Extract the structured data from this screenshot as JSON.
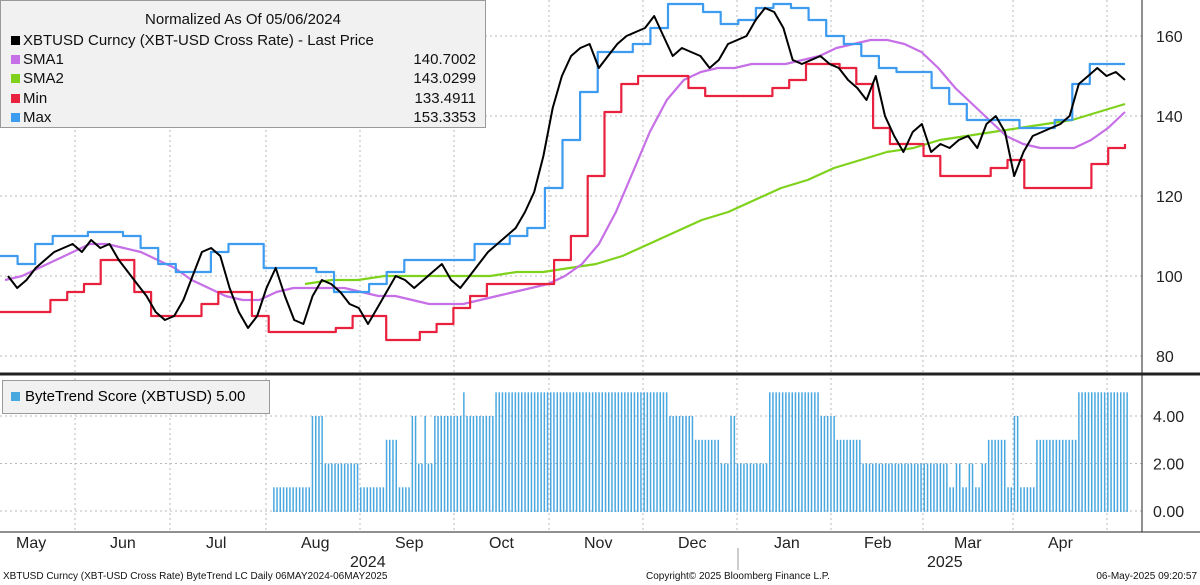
{
  "legend": {
    "title": "Normalized As Of 05/06/2024",
    "series": [
      {
        "label": "XBTUSD Curncy (XBT-USD Cross Rate) - Last Price",
        "value": "",
        "color": "#000000"
      },
      {
        "label": "SMA1",
        "value": "140.7002",
        "color": "#c66fe6"
      },
      {
        "label": "SMA2",
        "value": "143.0299",
        "color": "#7fd21c"
      },
      {
        "label": "Min",
        "value": "133.4911",
        "color": "#e8213f"
      },
      {
        "label": "Max",
        "value": "153.3353",
        "color": "#3d9bf0"
      }
    ]
  },
  "lower_legend": {
    "label": "ByteTrend Score (XBTUSD) 5.00",
    "color": "#4aa8e0"
  },
  "footer": {
    "left": "XBTUSD Curncy (XBT-USD Cross Rate) ByteTrend LC  Daily 06MAY2024-06MAY2025",
    "center": "Copyright© 2025 Bloomberg Finance L.P.",
    "right": "06-May-2025 09:20:57"
  },
  "chart_data": [
    {
      "type": "line",
      "panel": "upper",
      "x_labels": [
        "May",
        "Jun",
        "Jul",
        "Aug",
        "Sep",
        "Oct",
        "Nov",
        "Dec",
        "Jan",
        "Feb",
        "Mar",
        "Apr"
      ],
      "year_labels": [
        "2024",
        "2025"
      ],
      "y_ticks": [
        80,
        100,
        120,
        140,
        160
      ],
      "ylim": [
        76,
        169
      ],
      "grid": true,
      "series": [
        {
          "name": "XBTUSD Curncy (XBT-USD Cross Rate) - Last Price",
          "color": "#000000",
          "values": [
            100,
            97,
            99,
            102,
            104,
            106,
            107,
            108,
            106,
            109,
            107,
            108,
            104,
            101,
            98,
            95,
            91,
            89,
            90,
            94,
            100,
            106,
            107,
            105,
            97,
            91,
            87,
            90,
            97,
            102,
            95,
            89,
            88,
            95,
            99,
            98,
            96,
            93,
            92,
            88,
            92,
            96,
            100,
            99,
            97,
            99,
            101,
            103,
            99,
            97,
            100,
            103,
            106,
            108,
            110,
            112,
            116,
            121,
            130,
            142,
            150,
            155,
            157,
            158,
            152,
            155,
            158,
            160,
            161,
            162,
            165,
            160,
            155,
            157,
            156,
            155,
            152,
            154,
            158,
            159,
            160,
            164,
            167,
            166,
            162,
            154,
            153,
            154,
            155,
            153,
            152,
            149,
            147,
            144,
            150,
            140,
            135,
            131,
            136,
            138,
            131,
            133,
            132,
            134,
            135,
            132,
            138,
            140,
            136,
            125,
            131,
            135,
            136,
            137,
            138,
            140,
            148,
            150,
            152,
            150,
            151,
            149
          ]
        },
        {
          "name": "SMA1",
          "color": "#c66fe6",
          "values": [
            99,
            100,
            102,
            104,
            106,
            108,
            108,
            107,
            106,
            104,
            102,
            99,
            97,
            95,
            94,
            94,
            96,
            97,
            97,
            97,
            97,
            96,
            95,
            95,
            94,
            93,
            93,
            93,
            94,
            95,
            96,
            97,
            98,
            100,
            103,
            108,
            116,
            126,
            136,
            144,
            149,
            151,
            152,
            152,
            153,
            153,
            153,
            154,
            155,
            157,
            158,
            159,
            159,
            158,
            156,
            152,
            147,
            143,
            139,
            135,
            133,
            132,
            132,
            132,
            134,
            137,
            141
          ]
        },
        {
          "name": "SMA2",
          "color": "#7fd21c",
          "values": [
            98,
            99,
            99,
            100,
            100,
            100,
            100,
            100,
            101,
            101,
            102,
            103,
            105,
            108,
            111,
            114,
            116,
            119,
            122,
            124,
            127,
            129,
            131,
            132,
            134,
            135,
            136,
            137,
            138,
            139,
            141,
            143
          ]
        },
        {
          "name": "Min",
          "color": "#e8213f",
          "values": [
            91,
            91,
            91,
            94,
            96,
            98,
            104,
            104,
            96,
            90,
            90,
            90,
            93,
            96,
            96,
            90,
            86,
            86,
            86,
            86,
            87,
            90,
            90,
            84,
            84,
            86,
            88,
            92,
            95,
            98,
            98,
            98,
            98,
            104,
            110,
            125,
            141,
            148,
            150,
            150,
            150,
            147,
            145,
            145,
            145,
            145,
            147,
            149,
            153,
            153,
            152,
            148,
            137,
            133,
            133,
            130,
            125,
            125,
            125,
            127,
            129,
            122,
            122,
            122,
            122,
            128,
            132,
            133
          ]
        },
        {
          "name": "Max",
          "color": "#3d9bf0",
          "values": [
            105,
            103,
            108,
            110,
            110,
            111,
            111,
            110,
            107,
            103,
            101,
            101,
            106,
            108,
            108,
            102,
            102,
            102,
            101,
            96,
            96,
            98,
            101,
            104,
            104,
            104,
            104,
            108,
            108,
            110,
            112,
            122,
            134,
            146,
            156,
            156,
            158,
            162,
            168,
            168,
            166,
            163,
            164,
            167,
            168,
            167,
            164,
            160,
            158,
            155,
            152,
            151,
            151,
            147,
            143,
            139,
            139,
            139,
            137,
            137,
            139,
            148,
            153,
            153,
            153
          ]
        }
      ]
    },
    {
      "type": "bar",
      "panel": "lower",
      "name": "ByteTrend Score (XBTUSD) 5.00",
      "color": "#4aa8e0",
      "y_ticks": [
        "0.00",
        "2.00",
        "4.00"
      ],
      "ylim": [
        -0.8,
        5.6
      ],
      "values_per_day": [
        0,
        0,
        0,
        0,
        0,
        0,
        0,
        0,
        0,
        0,
        0,
        0,
        0,
        0,
        0,
        0,
        0,
        0,
        0,
        0,
        0,
        0,
        0,
        0,
        0,
        0,
        0,
        0,
        0,
        0,
        0,
        0,
        0,
        0,
        0,
        0,
        0,
        0,
        0,
        0,
        0,
        0,
        0,
        0,
        0,
        0,
        0,
        0,
        0,
        0,
        0,
        0,
        0,
        0,
        0,
        0,
        0,
        0,
        0,
        0,
        0,
        0,
        0,
        0,
        0,
        0,
        0,
        0,
        0,
        0,
        0,
        0,
        0,
        0,
        0,
        0,
        0,
        0,
        0,
        0,
        0,
        0,
        0,
        0,
        0,
        1,
        1,
        1,
        1,
        1,
        1,
        1,
        1,
        1,
        1,
        1,
        1,
        4,
        4,
        4,
        4,
        2,
        2,
        2,
        2,
        2,
        2,
        2,
        2,
        2,
        2,
        2,
        1,
        1,
        1,
        1,
        1,
        1,
        1,
        1,
        3,
        3,
        3,
        3,
        1,
        1,
        1,
        1,
        4,
        4,
        2,
        2,
        4,
        2,
        2,
        4,
        4,
        4,
        4,
        4,
        4,
        4,
        4,
        4,
        5,
        4,
        4,
        4,
        4,
        4,
        4,
        4,
        4,
        4,
        5,
        5,
        5,
        5,
        5,
        5,
        5,
        5,
        5,
        5,
        5,
        5,
        5,
        5,
        5,
        5,
        5,
        5,
        5,
        5,
        5,
        5,
        5,
        5,
        5,
        5,
        5,
        5,
        5,
        5,
        5,
        5,
        5,
        5,
        5,
        5,
        5,
        5,
        5,
        5,
        5,
        5,
        5,
        5,
        5,
        5,
        5,
        5,
        5,
        5,
        5,
        5,
        5,
        5,
        4,
        4,
        4,
        4,
        4,
        4,
        4,
        4,
        3,
        3,
        3,
        3,
        3,
        3,
        3,
        3,
        2,
        2,
        2,
        4,
        4,
        2,
        2,
        2,
        2,
        2,
        2,
        2,
        2,
        2,
        2,
        5,
        5,
        5,
        5,
        5,
        5,
        5,
        5,
        5,
        5,
        5,
        5,
        5,
        5,
        5,
        5,
        4,
        4,
        4,
        4,
        4,
        3,
        3,
        3,
        3,
        3,
        3,
        3,
        3,
        2,
        2,
        2,
        2,
        2,
        2,
        2,
        2,
        2,
        2,
        2,
        2,
        2,
        2,
        2,
        2,
        2,
        2,
        2,
        2,
        2,
        2,
        2,
        2,
        2,
        2,
        2,
        1,
        1,
        2,
        2,
        1,
        1,
        2,
        2,
        1,
        1,
        2,
        2,
        3,
        3,
        3,
        3,
        3,
        3,
        1,
        1,
        4,
        4,
        1,
        1,
        1,
        1,
        1,
        3,
        3,
        3,
        3,
        3,
        3,
        3,
        3,
        3,
        3,
        3,
        3,
        3,
        5,
        5,
        5,
        5,
        5,
        5,
        5,
        5,
        5,
        5,
        5,
        5,
        5,
        5,
        5,
        5
      ]
    }
  ]
}
